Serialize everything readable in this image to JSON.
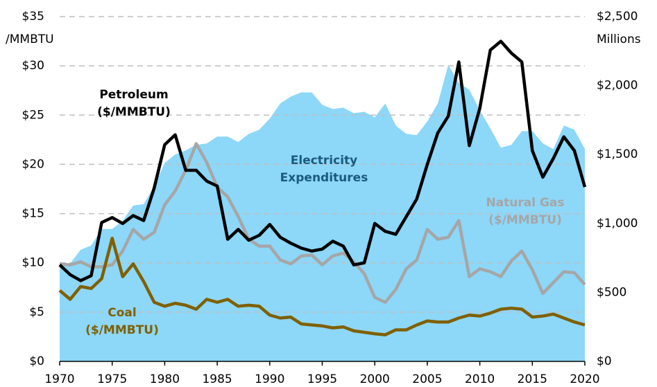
{
  "chart_data": {
    "type": "line",
    "x": [
      1970,
      1971,
      1972,
      1973,
      1974,
      1975,
      1976,
      1977,
      1978,
      1979,
      1980,
      1981,
      1982,
      1983,
      1984,
      1985,
      1986,
      1987,
      1988,
      1989,
      1990,
      1991,
      1992,
      1993,
      1994,
      1995,
      1996,
      1997,
      1998,
      1999,
      2000,
      2001,
      2002,
      2003,
      2004,
      2005,
      2006,
      2007,
      2008,
      2009,
      2010,
      2011,
      2012,
      2013,
      2014,
      2015,
      2016,
      2017,
      2018,
      2019,
      2020
    ],
    "xlim": [
      1970,
      2020
    ],
    "xticks": [
      1970,
      1975,
      1980,
      1985,
      1990,
      1995,
      2000,
      2005,
      2010,
      2015,
      2020
    ],
    "ylim": [
      0,
      35
    ],
    "yticks": [
      {
        "value": 0,
        "label": "$0"
      },
      {
        "value": 5,
        "label": "$5"
      },
      {
        "value": 10,
        "label": "$10"
      },
      {
        "value": 15,
        "label": "$15"
      },
      {
        "value": 20,
        "label": "$20"
      },
      {
        "value": 25,
        "label": "$25"
      },
      {
        "value": 30,
        "label": "$30"
      },
      {
        "value": 35,
        "label": "$35"
      }
    ],
    "ylabel": "/MMBTU",
    "y2lim": [
      0,
      2500
    ],
    "y2ticks": [
      {
        "value": 0,
        "label": "$0"
      },
      {
        "value": 500,
        "label": "$500"
      },
      {
        "value": 1000,
        "label": "$1,000"
      },
      {
        "value": 1500,
        "label": "$1,500"
      },
      {
        "value": 2000,
        "label": "$2,000"
      },
      {
        "value": 2500,
        "label": "$2,500"
      }
    ],
    "y2label": "Millions",
    "grid": true,
    "series": [
      {
        "label": [
          "Electricity",
          "Expenditures"
        ],
        "kind": "area",
        "axis": "y2",
        "color": "#8dd7f9",
        "label_color": "#1a5b7d",
        "values": [
          710,
          710,
          810,
          840,
          960,
          960,
          1020,
          1130,
          1140,
          1270,
          1440,
          1500,
          1530,
          1570,
          1580,
          1630,
          1630,
          1590,
          1650,
          1680,
          1760,
          1870,
          1920,
          1950,
          1950,
          1860,
          1830,
          1840,
          1800,
          1810,
          1770,
          1870,
          1710,
          1650,
          1640,
          1740,
          1870,
          2150,
          2020,
          1970,
          1820,
          1690,
          1550,
          1570,
          1670,
          1670,
          1580,
          1540,
          1710,
          1680,
          1540
        ]
      },
      {
        "label": [
          "Natural Gas",
          "($/MMBTU)"
        ],
        "kind": "line",
        "color": "#a6a6a6",
        "label_color": "#a6a6a6",
        "values": [
          9.9,
          9.8,
          10.1,
          9.6,
          9.6,
          9.8,
          11.2,
          13.4,
          12.4,
          13.1,
          15.9,
          17.3,
          19.4,
          22.1,
          20.2,
          17.7,
          16.7,
          14.7,
          12.4,
          11.7,
          11.7,
          10.3,
          9.9,
          10.7,
          10.8,
          9.8,
          10.7,
          11.0,
          10.1,
          8.9,
          6.5,
          6.0,
          7.3,
          9.4,
          10.3,
          13.4,
          12.4,
          12.6,
          14.3,
          8.6,
          9.4,
          9.1,
          8.6,
          10.2,
          11.2,
          9.3,
          6.9,
          8.0,
          9.1,
          9.0,
          7.8
        ]
      },
      {
        "label": [
          "Coal",
          "($/MMBTU)"
        ],
        "kind": "line",
        "color": "#7f6000",
        "label_color": "#7f6000",
        "values": [
          7.2,
          6.3,
          7.6,
          7.4,
          8.4,
          12.5,
          8.6,
          9.9,
          8.1,
          6.0,
          5.6,
          5.9,
          5.7,
          5.3,
          6.3,
          6.0,
          6.3,
          5.6,
          5.7,
          5.6,
          4.7,
          4.4,
          4.5,
          3.8,
          3.7,
          3.6,
          3.4,
          3.5,
          3.1,
          2.95,
          2.8,
          2.7,
          3.2,
          3.2,
          3.7,
          4.1,
          4.0,
          4.0,
          4.4,
          4.7,
          4.6,
          4.9,
          5.3,
          5.4,
          5.3,
          4.5,
          4.6,
          4.8,
          4.4,
          4.0,
          3.7
        ]
      },
      {
        "label": [
          "Petroleum",
          "($/MMBTU)"
        ],
        "kind": "line",
        "color": "#000000",
        "label_color": "#000000",
        "values": [
          9.8,
          8.8,
          8.2,
          8.7,
          14.1,
          14.6,
          14.0,
          14.8,
          14.3,
          17.6,
          22.0,
          23.0,
          19.4,
          19.4,
          18.3,
          17.8,
          12.4,
          13.4,
          12.3,
          12.8,
          13.9,
          12.6,
          12.0,
          11.5,
          11.2,
          11.4,
          12.2,
          11.7,
          9.8,
          10.0,
          14.0,
          13.2,
          12.9,
          14.7,
          16.5,
          20.0,
          23.2,
          24.9,
          30.4,
          21.9,
          25.7,
          31.6,
          32.5,
          31.3,
          30.4,
          21.4,
          18.7,
          20.6,
          22.8,
          21.4,
          17.7
        ]
      }
    ]
  }
}
